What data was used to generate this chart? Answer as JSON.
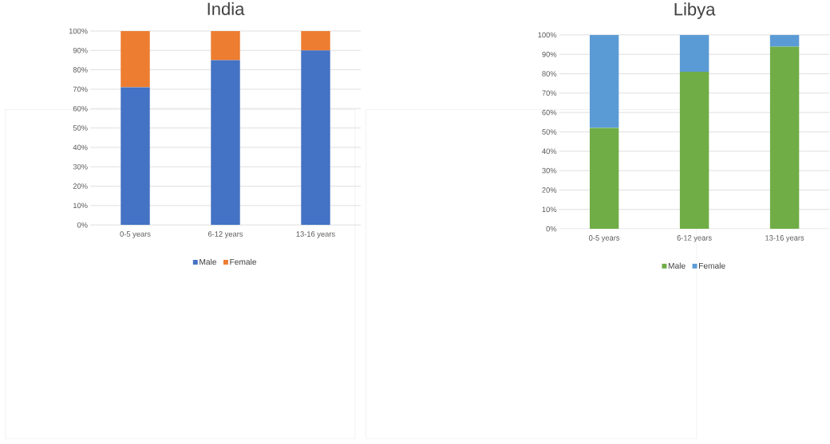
{
  "chart_data": [
    {
      "type": "bar",
      "title": "India",
      "stacked": true,
      "categories": [
        "0-5 years",
        "6-12 years",
        "13-16 years"
      ],
      "series": [
        {
          "name": "Male",
          "color": "#4472c4",
          "values": [
            71,
            85,
            90
          ]
        },
        {
          "name": "Female",
          "color": "#ed7d31",
          "values": [
            29,
            15,
            10
          ]
        }
      ],
      "ylim": [
        0,
        100
      ],
      "yticks": [
        {
          "value": 0,
          "label": "0%"
        },
        {
          "value": 10,
          "label": "10%"
        },
        {
          "value": 20,
          "label": "20%"
        },
        {
          "value": 30,
          "label": "30%"
        },
        {
          "value": 40,
          "label": "40%"
        },
        {
          "value": 50,
          "label": "50%"
        },
        {
          "value": 60,
          "label": "60%"
        },
        {
          "value": 70,
          "label": "70%"
        },
        {
          "value": 80,
          "label": "80%"
        },
        {
          "value": 90,
          "label": "90%"
        },
        {
          "value": 100,
          "label": "100%"
        }
      ],
      "grid": "y",
      "legend": "bottom"
    },
    {
      "type": "bar",
      "title": "Libya",
      "stacked": true,
      "categories": [
        "0-5 years",
        "6-12 years",
        "13-16 years"
      ],
      "series": [
        {
          "name": "Male",
          "color": "#70ad47",
          "values": [
            52,
            81,
            94
          ]
        },
        {
          "name": "Female",
          "color": "#5b9bd5",
          "values": [
            48,
            19,
            6
          ]
        }
      ],
      "ylim": [
        0,
        100
      ],
      "yticks": [
        {
          "value": 0,
          "label": "0%"
        },
        {
          "value": 10,
          "label": "10%"
        },
        {
          "value": 20,
          "label": "20%"
        },
        {
          "value": 30,
          "label": "30%"
        },
        {
          "value": 40,
          "label": "40%"
        },
        {
          "value": 50,
          "label": "50%"
        },
        {
          "value": 60,
          "label": "60%"
        },
        {
          "value": 70,
          "label": "70%"
        },
        {
          "value": 80,
          "label": "80%"
        },
        {
          "value": 90,
          "label": "90%"
        },
        {
          "value": 100,
          "label": "100%"
        }
      ],
      "grid": "y",
      "legend": "bottom"
    }
  ]
}
